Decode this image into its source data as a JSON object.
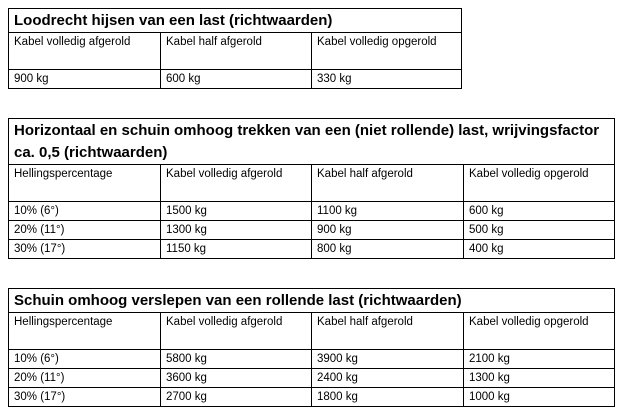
{
  "tables": [
    {
      "title": "Loodrecht hijsen van een last (richtwaarden)",
      "headers": [
        "Kabel volledig afgerold",
        "Kabel half afgerold",
        "Kabel volledig opgerold"
      ],
      "rows": [
        [
          "900 kg",
          "600 kg",
          "330 kg"
        ]
      ]
    },
    {
      "title": "Horizontaal en schuin omhoog trekken van een (niet rollende) last, wrijvingsfactor ca. 0,5 (richtwaarden)",
      "headers": [
        "Hellingspercentage",
        "Kabel volledig afgerold",
        "Kabel half afgerold",
        "Kabel volledig opgerold"
      ],
      "rows": [
        [
          "10% (6°)",
          "1500 kg",
          "1100 kg",
          "600 kg"
        ],
        [
          "20% (11°)",
          "1300 kg",
          "900 kg",
          "500 kg"
        ],
        [
          "30% (17°)",
          "1150 kg",
          "800 kg",
          "400 kg"
        ]
      ]
    },
    {
      "title": "Schuin omhoog verslepen van een rollende last (richtwaarden)",
      "headers": [
        "Hellingspercentage",
        "Kabel volledig afgerold",
        "Kabel half afgerold",
        "Kabel volledig opgerold"
      ],
      "rows": [
        [
          "10% (6°)",
          "5800 kg",
          "3900 kg",
          "2100 kg"
        ],
        [
          "20% (11°)",
          "3600 kg",
          "2400 kg",
          "1300 kg"
        ],
        [
          "30% (17°)",
          "2700 kg",
          "1800 kg",
          "1000 kg"
        ]
      ]
    }
  ]
}
